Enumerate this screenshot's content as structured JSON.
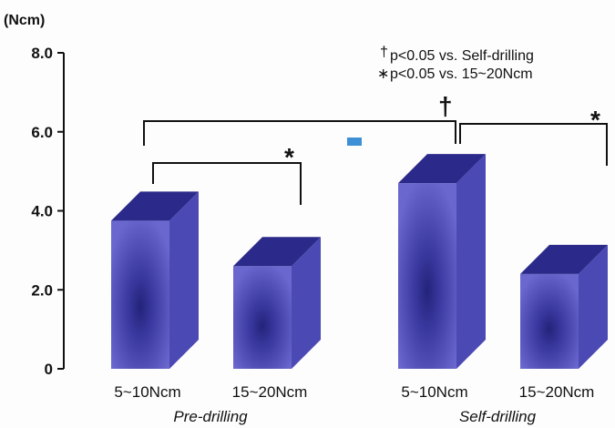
{
  "chart_data": {
    "type": "bar",
    "unit_label": "(Ncm)",
    "y_ticks": [
      "8.0",
      "6.0",
      "4.0",
      "2.0",
      "0"
    ],
    "ylim": [
      0,
      8
    ],
    "groups": [
      {
        "label": "Pre-drilling",
        "categories": [
          "5~10Ncm",
          "15~20Ncm"
        ],
        "values": [
          3.75,
          2.6
        ]
      },
      {
        "label": "Self-drilling",
        "categories": [
          "5~10Ncm",
          "15~20Ncm"
        ],
        "values": [
          4.7,
          2.4
        ]
      }
    ],
    "legend": [
      {
        "symbol": "†",
        "text": "p<0.05 vs. Self-drilling"
      },
      {
        "symbol": "∗",
        "text": "p<0.05 vs. 15~20Ncm"
      }
    ],
    "significance_marks": [
      "†",
      "*",
      "*"
    ],
    "bar_color": "#5e5cc7",
    "bar_top_color": "#2b2a8a",
    "bar_side_color": "#4b49b4",
    "bar_center_color": "#23237a",
    "marker_color": "#3d8fd6"
  }
}
